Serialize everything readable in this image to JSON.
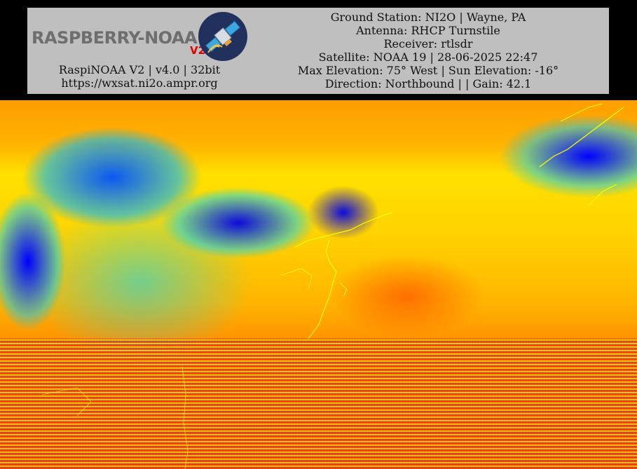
{
  "logo": {
    "wordmark": "RASPBERRY-NOAA",
    "version_mark": "V2",
    "badge_icon": "satellite-icon"
  },
  "software": {
    "version_line": "RaspiNOAA V2 | v4.0 | 32bit",
    "url": "https://wxsat.ni2o.ampr.org"
  },
  "info": {
    "ground_station": "Ground Station: NI2O | Wayne, PA",
    "antenna": "Antenna: RHCP Turnstile",
    "receiver": "Receiver: rtlsdr",
    "satellite": "Satellite: NOAA 19 | 28-06-2025 22:47",
    "elevation": "Max Elevation: 75° West | Sun Elevation: -16°",
    "direction": "Direction: Northbound | | Gain: 42.1"
  },
  "colors": {
    "header_panel": "#bfbfbf",
    "background": "#000000",
    "logo_accent": "#e30000",
    "coastline": "#ffff00"
  }
}
